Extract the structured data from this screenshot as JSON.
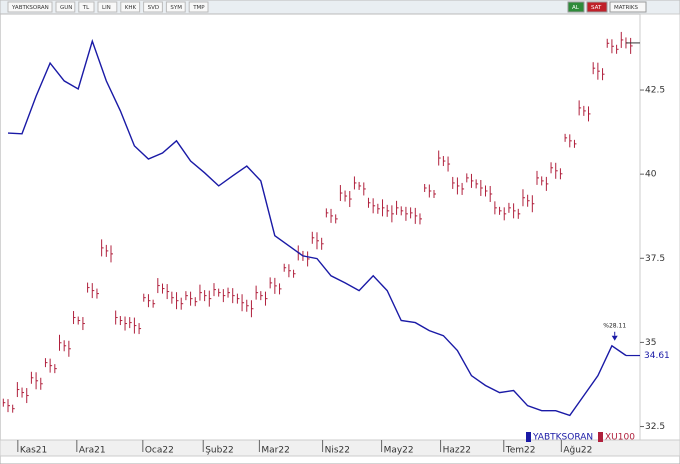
{
  "toolbar": {
    "left": [
      "YABTKSORAN",
      "GUN",
      "TL",
      "LIN",
      "KHK",
      "SVD",
      "SYM",
      "TMP"
    ],
    "right": [
      "AL",
      "SAT",
      "MATRIKS"
    ]
  },
  "chart_data": {
    "type": "line",
    "xlim": [
      0,
      45
    ],
    "xticks": [
      {
        "value": 0.7,
        "label": "Kas21"
      },
      {
        "value": 4.9,
        "label": "Ara21"
      },
      {
        "value": 9.6,
        "label": "Oca22"
      },
      {
        "value": 13.9,
        "label": "Şub22"
      },
      {
        "value": 17.9,
        "label": "Mar22"
      },
      {
        "value": 22.4,
        "label": "Nis22"
      },
      {
        "value": 26.6,
        "label": "May22"
      },
      {
        "value": 30.8,
        "label": "Haz22"
      },
      {
        "value": 35.3,
        "label": "Tem22"
      },
      {
        "value": 39.4,
        "label": "Ağu22"
      }
    ],
    "ylim": [
      32.1,
      44.7
    ],
    "yticks": [
      32.5,
      35,
      37.5,
      40,
      42.5
    ],
    "annotation": "%28.11",
    "series": [
      {
        "name": "YABTKSORAN",
        "color": "#1a1aa6",
        "style": "line",
        "values": [
          41.22,
          41.2,
          42.32,
          43.3,
          42.77,
          42.53,
          43.95,
          42.77,
          41.88,
          40.84,
          40.45,
          40.63,
          40.99,
          40.39,
          40.04,
          39.65,
          39.95,
          40.24,
          39.8,
          38.17,
          37.87,
          37.57,
          37.49,
          36.98,
          36.77,
          36.54,
          36.98,
          36.54,
          35.65,
          35.59,
          35.35,
          35.2,
          34.76,
          34.01,
          33.72,
          33.51,
          33.57,
          33.12,
          32.97,
          32.97,
          32.83,
          33.42,
          34.01,
          34.9,
          34.61
        ]
      },
      {
        "name": "XU100",
        "color": "#b0203c",
        "style": "ohlc",
        "values": [
          33.12,
          33.51,
          33.86,
          34.31,
          34.9,
          35.65,
          36.54,
          37.72,
          35.65,
          35.5,
          36.24,
          36.6,
          36.24,
          36.3,
          36.39,
          36.48,
          36.39,
          36.09,
          36.39,
          36.68,
          37.13,
          37.57,
          38.02,
          38.76,
          39.35,
          39.65,
          39.06,
          38.91,
          38.91,
          38.76,
          39.5,
          40.39,
          39.65,
          39.8,
          39.5,
          38.91,
          38.91,
          39.21,
          39.8,
          40.1,
          40.99,
          41.88,
          43.06,
          43.8,
          43.9
        ]
      }
    ]
  }
}
